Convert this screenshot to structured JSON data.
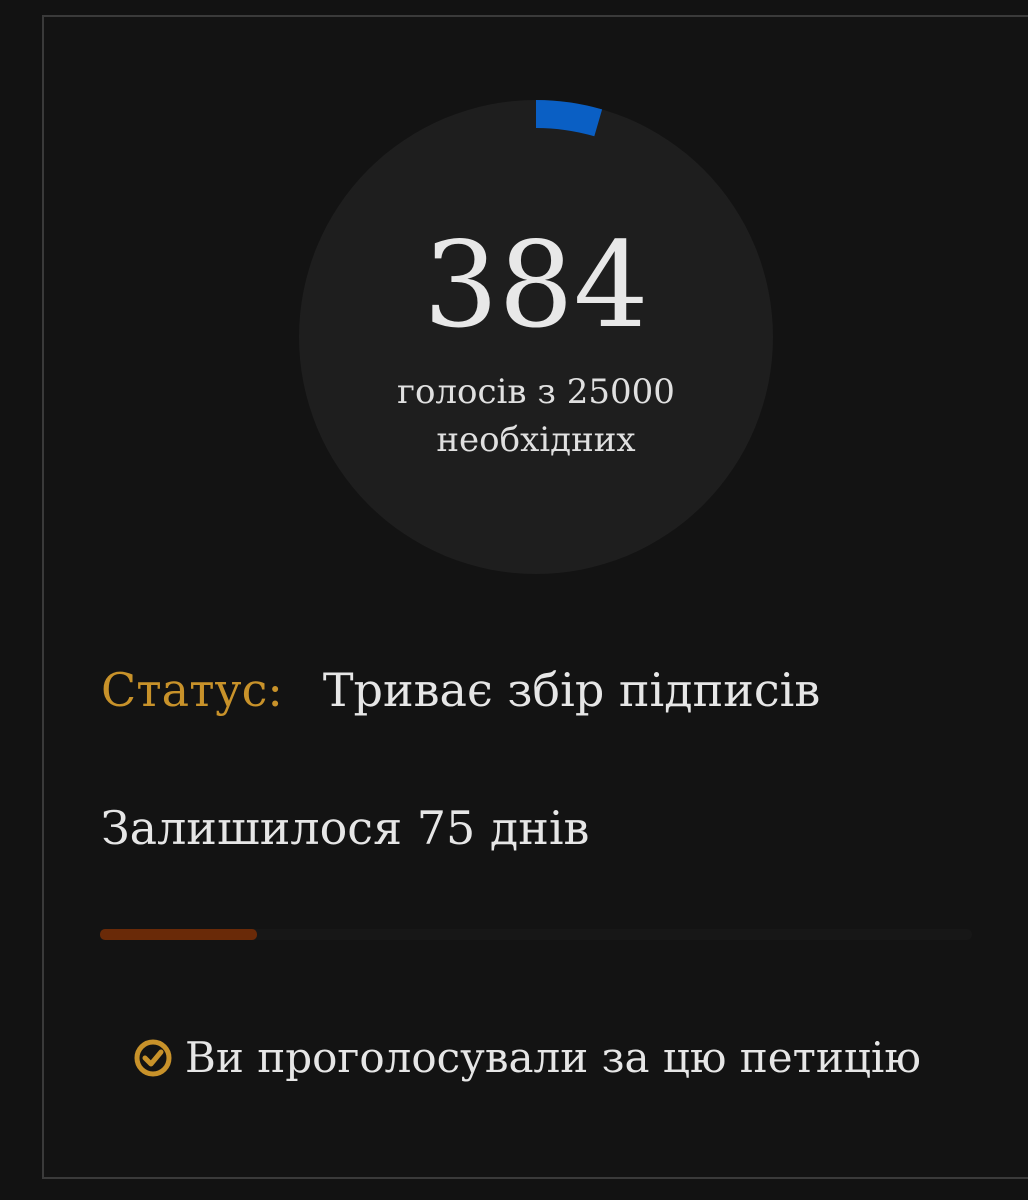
{
  "votes": {
    "count": "384",
    "subtitle_line1": "голосів з 25000",
    "subtitle_line2": "необхідних",
    "current": 384,
    "required": 25000
  },
  "status": {
    "label": "Статус:",
    "value": "Триває збір підписів"
  },
  "days_left": "Залишилося 75 днів",
  "time_progress": 0.18,
  "voted_notice": {
    "icon": "check-circle-icon",
    "text": "Ви проголосували за цю петицію"
  },
  "colors": {
    "accent_gold": "#c8922a",
    "progress_blue": "#0a5fc4",
    "time_bar": "#6a2a08"
  }
}
